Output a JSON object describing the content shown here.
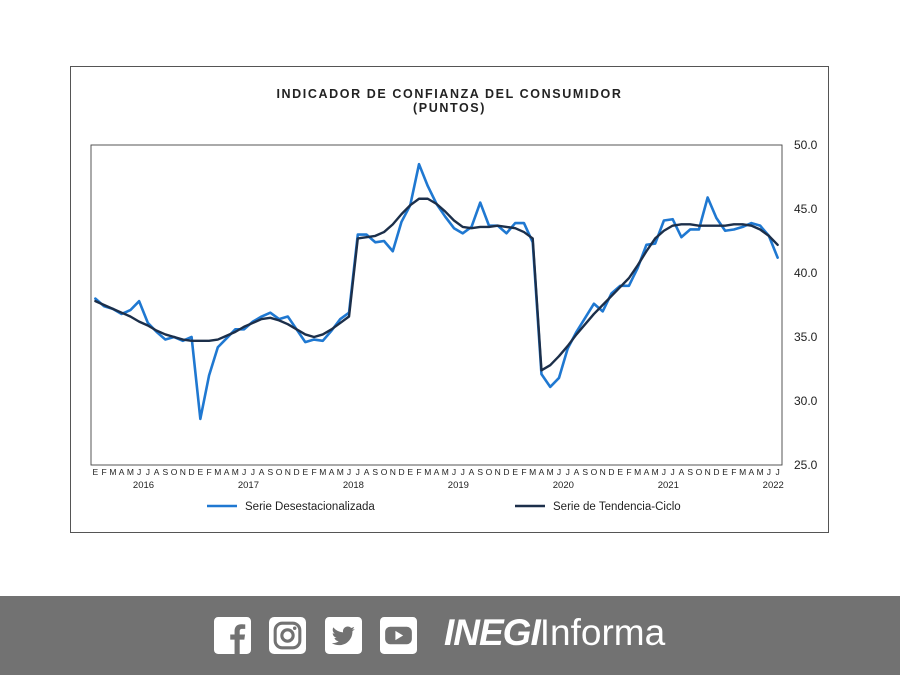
{
  "chart_data": {
    "type": "line",
    "title": "INDICADOR DE CONFIANZA DEL CONSUMIDOR",
    "subtitle": "(PUNTOS)",
    "ylim": [
      25.0,
      50.0
    ],
    "yticks": [
      "50.0",
      "45.0",
      "40.0",
      "35.0",
      "30.0",
      "25.0"
    ],
    "grid": false,
    "legend_position": "bottom",
    "month_labels": [
      "E",
      "F",
      "M",
      "A",
      "M",
      "J",
      "J",
      "A",
      "S",
      "O",
      "N",
      "D",
      "E",
      "F",
      "M",
      "A",
      "M",
      "J",
      "J",
      "A",
      "S",
      "O",
      "N",
      "D",
      "E",
      "F",
      "M",
      "A",
      "M",
      "J",
      "J",
      "A",
      "S",
      "O",
      "N",
      "D",
      "E",
      "F",
      "M",
      "A",
      "M",
      "J",
      "J",
      "A",
      "S",
      "O",
      "N",
      "D",
      "E",
      "F",
      "M",
      "A",
      "M",
      "J",
      "J",
      "A",
      "S",
      "O",
      "N",
      "D",
      "E",
      "F",
      "M",
      "A",
      "M",
      "J",
      "J",
      "A",
      "S",
      "O",
      "N",
      "D",
      "E",
      "F",
      "M",
      "A",
      "M",
      "J",
      "J"
    ],
    "years": [
      {
        "label": "2016",
        "start_index": 0
      },
      {
        "label": "2017",
        "start_index": 12
      },
      {
        "label": "2018",
        "start_index": 24
      },
      {
        "label": "2019",
        "start_index": 36
      },
      {
        "label": "2020",
        "start_index": 48
      },
      {
        "label": "2021",
        "start_index": 60
      },
      {
        "label": "2022",
        "start_index": 72
      }
    ],
    "series": [
      {
        "name": "Serie Desestacionalizada",
        "color": "#1f78d1",
        "values": [
          38.0,
          37.4,
          37.2,
          36.8,
          37.1,
          37.8,
          36.1,
          35.4,
          34.8,
          35.0,
          34.7,
          35.0,
          28.6,
          32.0,
          34.2,
          34.9,
          35.6,
          35.6,
          36.2,
          36.6,
          36.9,
          36.4,
          36.6,
          35.6,
          34.6,
          34.8,
          34.7,
          35.5,
          36.4,
          36.9,
          43.0,
          43.0,
          42.4,
          42.5,
          41.7,
          44.0,
          45.3,
          48.5,
          46.8,
          45.4,
          44.4,
          43.5,
          43.1,
          43.6,
          45.5,
          43.7,
          43.7,
          43.1,
          43.9,
          43.9,
          42.4,
          32.1,
          31.1,
          31.8,
          34.1,
          35.4,
          36.5,
          37.6,
          37.0,
          38.4,
          39.0,
          39.0,
          40.4,
          42.2,
          42.3,
          44.1,
          44.2,
          42.8,
          43.4,
          43.4,
          45.9,
          44.3,
          43.3,
          43.4,
          43.6,
          43.9,
          43.7,
          42.9,
          41.2
        ]
      },
      {
        "name": "Serie de Tendencia-Ciclo",
        "color": "#1c2f4a",
        "values": [
          37.8,
          37.5,
          37.2,
          36.9,
          36.6,
          36.2,
          35.9,
          35.5,
          35.2,
          35.0,
          34.8,
          34.7,
          34.7,
          34.7,
          34.8,
          35.1,
          35.4,
          35.8,
          36.1,
          36.4,
          36.5,
          36.3,
          36.0,
          35.6,
          35.2,
          35.0,
          35.2,
          35.6,
          36.1,
          36.6,
          42.7,
          42.8,
          42.9,
          43.2,
          43.8,
          44.6,
          45.3,
          45.8,
          45.8,
          45.4,
          44.8,
          44.1,
          43.6,
          43.5,
          43.6,
          43.6,
          43.7,
          43.6,
          43.5,
          43.2,
          42.7,
          32.4,
          32.8,
          33.5,
          34.3,
          35.2,
          36.0,
          36.8,
          37.5,
          38.2,
          38.9,
          39.6,
          40.6,
          41.7,
          42.7,
          43.3,
          43.7,
          43.8,
          43.8,
          43.7,
          43.7,
          43.7,
          43.7,
          43.8,
          43.8,
          43.7,
          43.4,
          42.9,
          42.2
        ]
      }
    ]
  },
  "footer": {
    "brand_strong": "INEGI",
    "brand_light": "Informa",
    "social_icons": [
      "facebook-icon",
      "instagram-icon",
      "twitter-icon",
      "youtube-icon"
    ]
  }
}
